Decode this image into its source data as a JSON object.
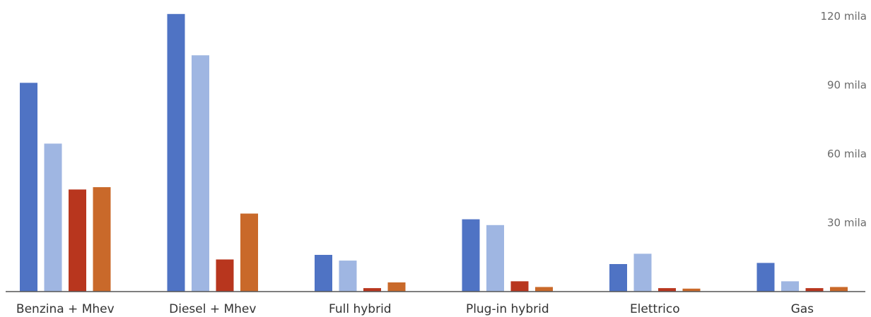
{
  "chart_data": {
    "type": "bar",
    "categories": [
      "Benzina + Mhev",
      "Diesel + Mhev",
      "Full hybrid",
      "Plug-in hybrid",
      "Elettrico",
      "Gas"
    ],
    "series": [
      {
        "values": [
          91,
          121,
          16,
          31.5,
          12,
          12.5
        ],
        "color": "#4f73c4"
      },
      {
        "values": [
          64.5,
          103,
          13.5,
          29,
          16.5,
          4.5
        ],
        "color": "#9fb6e2"
      },
      {
        "values": [
          44.5,
          14,
          1.5,
          4.5,
          1.5,
          1.5
        ],
        "color": "#b8361e"
      },
      {
        "values": [
          45.5,
          34,
          4,
          2,
          1.3,
          2
        ],
        "color": "#c9692a"
      }
    ],
    "y_ticks": [
      {
        "value": 30,
        "label": "30 mila"
      },
      {
        "value": 60,
        "label": "60 mila"
      },
      {
        "value": 90,
        "label": "90 mila"
      },
      {
        "value": 120,
        "label": "120 mila"
      }
    ],
    "ylim": [
      0,
      120
    ],
    "grid": false,
    "legend": "none"
  }
}
